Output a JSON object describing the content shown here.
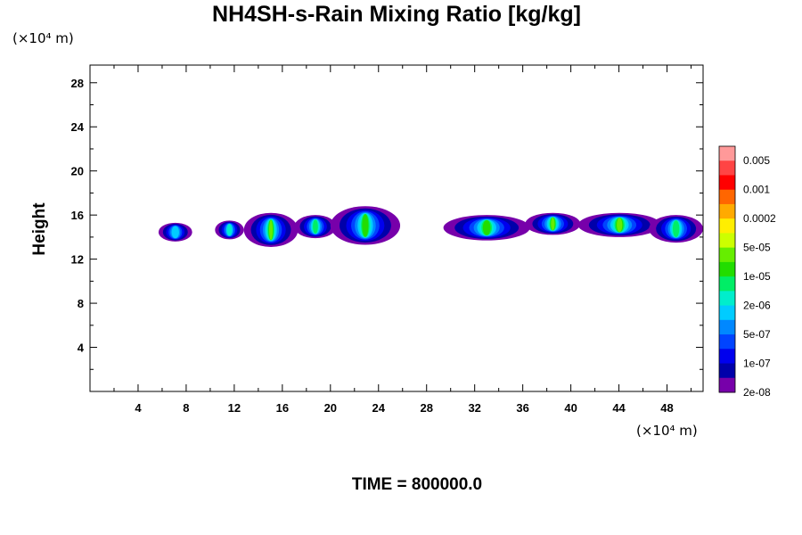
{
  "chart_data": {
    "type": "heatmap",
    "title": "NH4SH-s-Rain Mixing Ratio [kg/kg]",
    "xlabel": "",
    "ylabel": "Height",
    "x_unit": "(×10⁴ m)",
    "y_unit": "(×10⁴ m)",
    "xlim": [
      0,
      51
    ],
    "ylim": [
      0,
      29.6
    ],
    "x_ticks": [
      4,
      8,
      12,
      16,
      20,
      24,
      28,
      32,
      36,
      40,
      44,
      48
    ],
    "y_ticks": [
      4,
      8,
      12,
      16,
      20,
      24,
      28
    ],
    "grid": false,
    "colorbar": {
      "position": "right",
      "labels": [
        "0.005",
        "0.001",
        "0.0002",
        "5e-05",
        "1e-05",
        "2e-06",
        "5e-07",
        "1e-07",
        "2e-08"
      ],
      "colors": [
        "#ff9999",
        "#ff4444",
        "#ff0000",
        "#ff6600",
        "#ffaa00",
        "#ffee00",
        "#ccff00",
        "#66ee00",
        "#22dd00",
        "#00ee66",
        "#00eecc",
        "#00ccff",
        "#0088ff",
        "#0044ff",
        "#0000ee",
        "#0000aa",
        "#7700aa"
      ]
    },
    "cells": [
      {
        "x": [
          5.7,
          8.5
        ],
        "y": [
          13.6,
          15.3
        ],
        "peak": 11
      },
      {
        "x": [
          10.4,
          12.8
        ],
        "y": [
          13.8,
          15.5
        ],
        "peak": 10
      },
      {
        "x": [
          12.8,
          17.3
        ],
        "y": [
          13.1,
          16.2
        ],
        "peak": 7
      },
      {
        "x": [
          17.0,
          20.5
        ],
        "y": [
          13.9,
          16.0
        ],
        "peak": 9
      },
      {
        "x": [
          20.0,
          25.8
        ],
        "y": [
          13.3,
          16.8
        ],
        "peak": 8
      },
      {
        "x": [
          29.4,
          36.6
        ],
        "y": [
          13.7,
          16.0
        ],
        "peak": 8
      },
      {
        "x": [
          36.2,
          40.8
        ],
        "y": [
          14.2,
          16.2
        ],
        "peak": 7
      },
      {
        "x": [
          40.6,
          47.5
        ],
        "y": [
          14.0,
          16.2
        ],
        "peak": 7
      },
      {
        "x": [
          46.5,
          51.0
        ],
        "y": [
          13.5,
          16.0
        ],
        "peak": 9
      }
    ]
  },
  "time_label": "TIME = 800000.0"
}
